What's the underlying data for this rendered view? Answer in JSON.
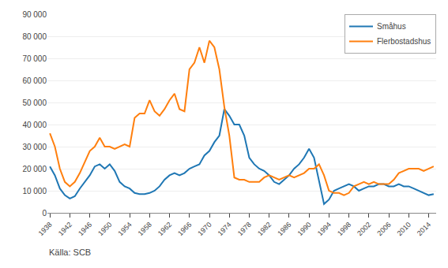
{
  "chart_data": {
    "type": "line",
    "annotations": [
      "Källa: SCB"
    ],
    "x": [
      1938,
      1939,
      1940,
      1941,
      1942,
      1943,
      1944,
      1945,
      1946,
      1947,
      1948,
      1949,
      1950,
      1951,
      1952,
      1953,
      1954,
      1955,
      1956,
      1957,
      1958,
      1959,
      1960,
      1961,
      1962,
      1963,
      1964,
      1965,
      1966,
      1967,
      1968,
      1969,
      1970,
      1971,
      1972,
      1973,
      1974,
      1975,
      1976,
      1977,
      1978,
      1979,
      1980,
      1981,
      1982,
      1983,
      1984,
      1985,
      1986,
      1987,
      1988,
      1989,
      1990,
      1991,
      1992,
      1993,
      1994,
      1995,
      1996,
      1997,
      1998,
      1999,
      2000,
      2001,
      2002,
      2003,
      2004,
      2005,
      2006,
      2007,
      2008,
      2009,
      2010,
      2011,
      2012,
      2013,
      2014,
      2015
    ],
    "series": [
      {
        "name": "Småhus",
        "values": [
          21000,
          17000,
          11000,
          8000,
          6500,
          7500,
          11000,
          14000,
          17000,
          21000,
          22000,
          20000,
          22000,
          19000,
          14000,
          12000,
          11000,
          9000,
          8500,
          8500,
          9000,
          10000,
          12000,
          15000,
          17000,
          18000,
          17000,
          18000,
          20000,
          21000,
          22000,
          26000,
          28000,
          32000,
          35000,
          47000,
          44000,
          40000,
          40000,
          35000,
          25000,
          22000,
          20000,
          19000,
          17000,
          14000,
          13000,
          15000,
          17000,
          20000,
          22000,
          25000,
          29000,
          25000,
          15000,
          4000,
          6000,
          10000,
          11000,
          12000,
          13000,
          12000,
          10000,
          11000,
          12000,
          12000,
          13000,
          13000,
          12000,
          12000,
          13000,
          12000,
          12000,
          11000,
          10000,
          9000,
          8000,
          8500
        ]
      },
      {
        "name": "Flerbostadshus",
        "values": [
          36000,
          30000,
          20000,
          14000,
          12000,
          14000,
          18000,
          23000,
          28000,
          30000,
          34000,
          30000,
          30000,
          29000,
          30000,
          31000,
          30000,
          43000,
          45000,
          45000,
          51000,
          46000,
          44000,
          47000,
          51000,
          54000,
          47000,
          46000,
          65000,
          68000,
          75000,
          68000,
          78000,
          75000,
          65000,
          48000,
          35000,
          16000,
          15000,
          15000,
          14000,
          14000,
          14000,
          16000,
          17000,
          16000,
          15000,
          16000,
          17000,
          16000,
          17000,
          18000,
          20000,
          20000,
          22000,
          17000,
          10000,
          9000,
          9000,
          8000,
          9000,
          12000,
          13000,
          14000,
          13000,
          14000,
          13000,
          13000,
          13000,
          15000,
          18000,
          19000,
          20000,
          20000,
          20000,
          19000,
          20000,
          21000
        ]
      }
    ],
    "xlim": [
      1937.5,
      2015.5
    ],
    "xticks": [
      1938,
      1942,
      1946,
      1950,
      1954,
      1958,
      1962,
      1966,
      1970,
      1974,
      1978,
      1982,
      1986,
      1990,
      1994,
      1998,
      2002,
      2006,
      2010,
      2014
    ],
    "ylim": [
      0,
      90000
    ],
    "yticks": [
      0,
      {
        "value": 10000,
        "label": "10 000"
      },
      {
        "value": 20000,
        "label": "20 000"
      },
      {
        "value": 30000,
        "label": "30 000"
      },
      {
        "value": 40000,
        "label": "40 000"
      },
      {
        "value": 50000,
        "label": "50 000"
      },
      {
        "value": 60000,
        "label": "60 000"
      },
      {
        "value": 70000,
        "label": "70 000"
      },
      {
        "value": 80000,
        "label": "80 000"
      },
      {
        "value": 90000,
        "label": "90 000"
      }
    ],
    "grid": true,
    "legend": "upper right"
  }
}
